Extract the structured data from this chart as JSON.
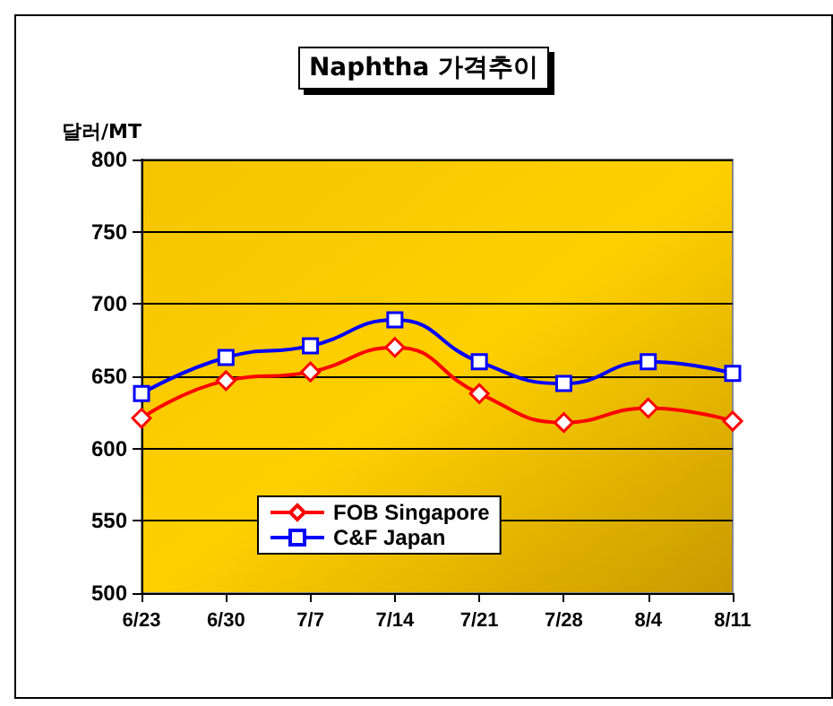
{
  "chart_data": {
    "type": "line",
    "title": "Naphtha 가격추이",
    "ylabel": "달러/MT",
    "categories": [
      "6/23",
      "6/30",
      "7/7",
      "7/14",
      "7/21",
      "7/28",
      "8/4",
      "8/11"
    ],
    "series": [
      {
        "name": "FOB Singapore",
        "color": "#ff0000",
        "marker": "diamond",
        "values": [
          621,
          647,
          653,
          670,
          638,
          618,
          628,
          619
        ]
      },
      {
        "name": "C&F Japan",
        "color": "#0000ff",
        "marker": "square",
        "values": [
          638,
          663,
          671,
          689,
          660,
          645,
          660,
          652
        ]
      }
    ],
    "ylim": [
      500,
      800
    ],
    "yticks": [
      500,
      550,
      600,
      650,
      700,
      750,
      800
    ],
    "grid": "y",
    "legend": "bottom left",
    "line_style": "solid"
  }
}
